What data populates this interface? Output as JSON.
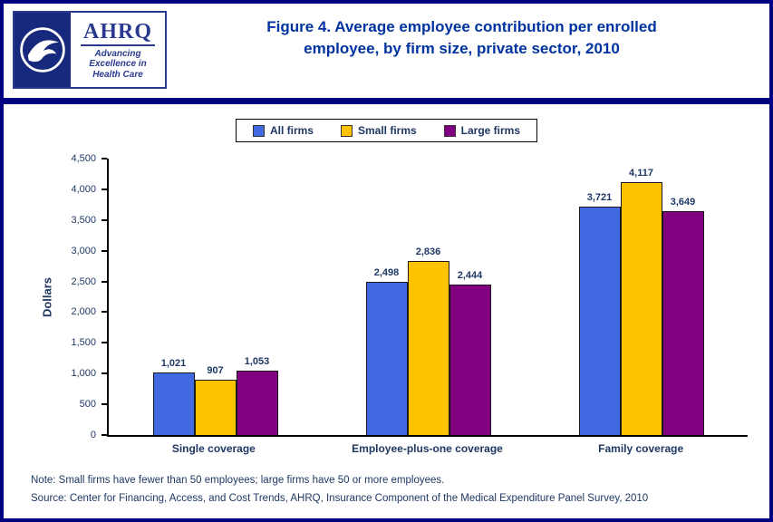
{
  "header": {
    "title": "Figure 4. Average employee contribution per enrolled employee, by firm size, private sector, 2010",
    "ahrq_acronym": "AHRQ",
    "ahrq_tagline": "Advancing Excellence in Health Care"
  },
  "chart_data": {
    "type": "bar",
    "title": "Figure 4. Average employee contribution per enrolled employee, by firm size, private sector, 2010",
    "categories": [
      "Single coverage",
      "Employee-plus-one coverage",
      "Family coverage"
    ],
    "series": [
      {
        "name": "All firms",
        "color": "#4169E1",
        "values": [
          1021,
          2498,
          3721
        ]
      },
      {
        "name": "Small firms",
        "color": "#FFC200",
        "values": [
          907,
          2836,
          4117
        ]
      },
      {
        "name": "Large firms",
        "color": "#800080",
        "values": [
          1053,
          2444,
          3649
        ]
      }
    ],
    "xlabel": "",
    "ylabel": "Dollars",
    "ylim": [
      0,
      4500
    ],
    "ytick_step": 500,
    "grid": false,
    "legend_position": "top-center",
    "data_labels": true
  },
  "notes": {
    "note": "Note: Small firms have fewer than 50 employees; large firms have 50 or more employees.",
    "source": "Source: Center for Financing, Access, and Cost Trends, AHRQ, Insurance Component of the Medical Expenditure Panel Survey, 2010"
  },
  "colors": {
    "page_border": "#000080",
    "divider": "#000080",
    "title_text": "#0033A0",
    "label_text": "#1F3864"
  }
}
